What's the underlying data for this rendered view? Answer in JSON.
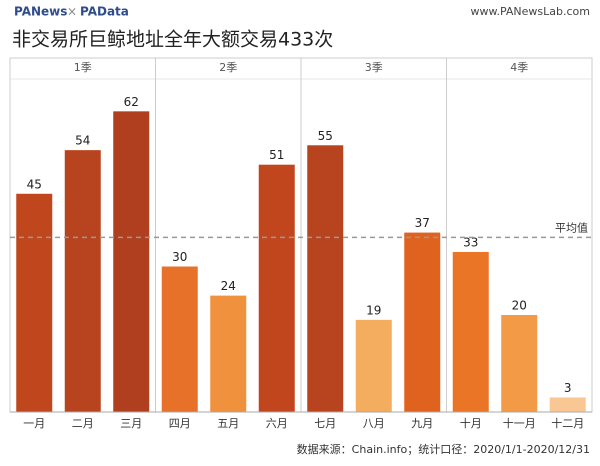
{
  "header": {
    "brand": [
      "PANews",
      "×",
      "PAData"
    ],
    "site": "www.PANewsLab.com"
  },
  "chart_data": {
    "type": "bar",
    "title": "非交易所巨鲸地址全年大额交易433次",
    "groups": [
      "1季",
      "2季",
      "3季",
      "4季"
    ],
    "categories": [
      "一月",
      "二月",
      "三月",
      "四月",
      "五月",
      "六月",
      "七月",
      "八月",
      "九月",
      "十月",
      "十一月",
      "十二月"
    ],
    "values": [
      45,
      54,
      62,
      30,
      24,
      51,
      55,
      19,
      37,
      33,
      20,
      3
    ],
    "colors": [
      "#c0461e",
      "#b8441f",
      "#b03f1f",
      "#e8712a",
      "#f0923d",
      "#c2461d",
      "#b8441f",
      "#f4ac5f",
      "#e0621f",
      "#eb7526",
      "#f29a45",
      "#f8c793"
    ],
    "ylim": [
      0,
      73
    ],
    "average_line": {
      "label": "平均值",
      "value": 36
    },
    "source": "数据来源：Chain.info；统计口径：2020/1/1-2020/12/31"
  }
}
